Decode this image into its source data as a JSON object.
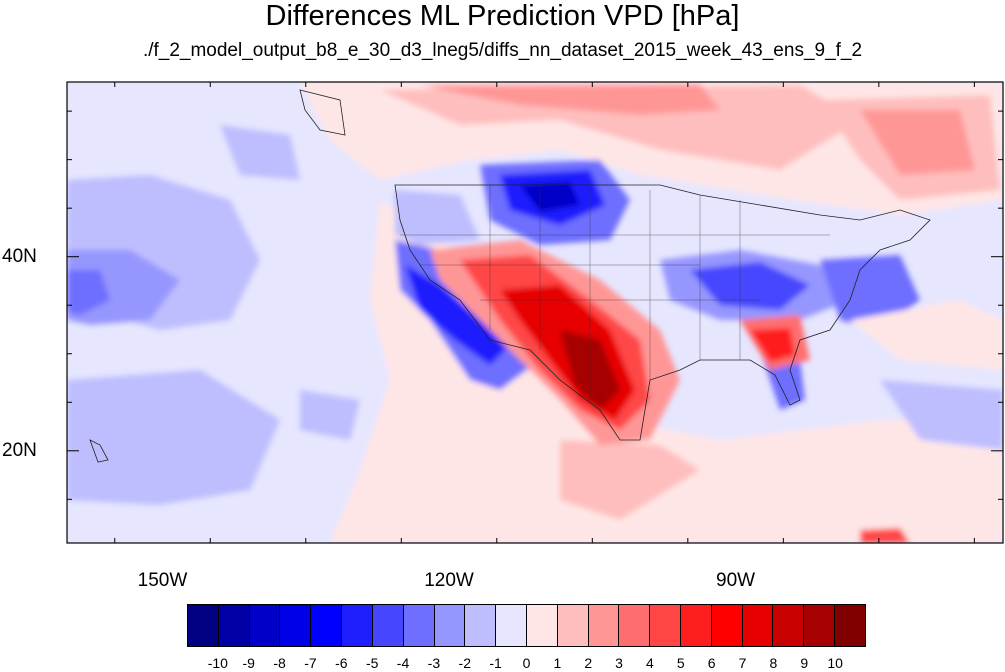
{
  "title": "Differences ML Prediction VPD [hPa]",
  "subtitle": "./f_2_model_output_b8_e_30_d3_lneg5/diffs_nn_dataset_2015_week_43_ens_9_f_2",
  "map": {
    "lon_range": [
      -160,
      -62
    ],
    "lat_range": [
      10.5,
      58
    ],
    "lat_labels": [
      {
        "lat": 40,
        "text": "40N"
      },
      {
        "lat": 20,
        "text": "20N"
      }
    ],
    "lon_labels": [
      {
        "lon": -150,
        "text": "150W"
      },
      {
        "lon": -120,
        "text": "120W"
      },
      {
        "lon": -90,
        "text": "90W"
      }
    ],
    "background_value": "-1 to 0"
  },
  "colorbar": {
    "labels": [
      "-10",
      "-9",
      "-8",
      "-7",
      "-6",
      "-5",
      "-4",
      "-3",
      "-2",
      "-1",
      "0",
      "1",
      "2",
      "3",
      "4",
      "5",
      "6",
      "7",
      "8",
      "9",
      "10"
    ],
    "colors": [
      "#000080",
      "#0000a6",
      "#0000c8",
      "#0000e6",
      "#0000ff",
      "#1e1eff",
      "#4646ff",
      "#6e6eff",
      "#9696ff",
      "#bebeff",
      "#e6e6ff",
      "#ffe6e6",
      "#ffbebe",
      "#ff9696",
      "#ff6e6e",
      "#ff4646",
      "#ff1e1e",
      "#ff0000",
      "#e60000",
      "#c80000",
      "#a60000",
      "#800000"
    ]
  }
}
